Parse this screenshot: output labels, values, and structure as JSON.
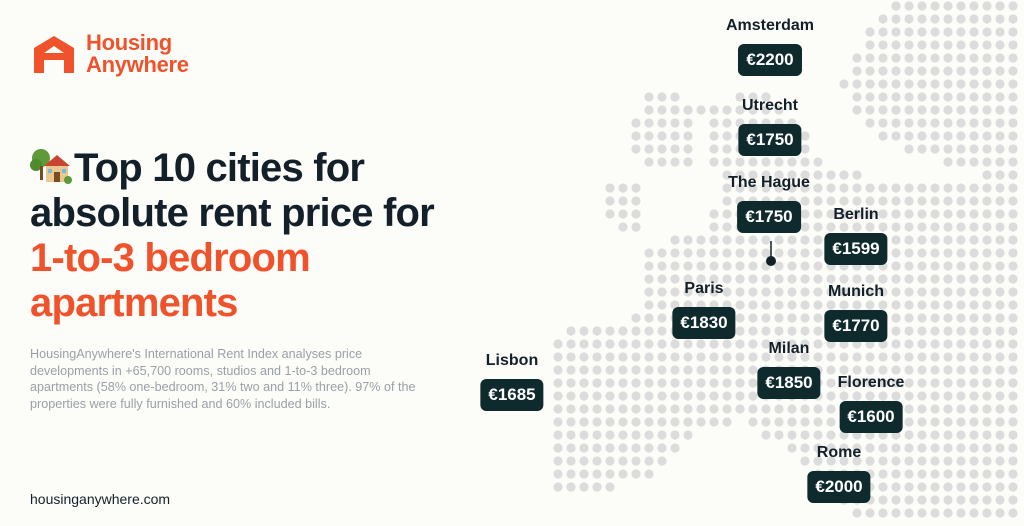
{
  "brand": {
    "name_line1": "Housing",
    "name_line2": "Anywhere",
    "accent_color": "#f0522b"
  },
  "headline": {
    "icon": "house-with-tree-icon",
    "line1": "Top 10 cities for",
    "line2": "absolute rent price for",
    "line3": "1-to-3 bedroom",
    "line4": "apartments"
  },
  "description": "HousingAnywhere's International Rent Index analyses price developments in +65,700 rooms, studios and 1-to-3 bedroom apartments (58% one-bedroom, 31% two and 11% three). 97% of the properties were fully furnished and 60% included bills.",
  "website": "housinganywhere.com",
  "cities": [
    {
      "name": "Amsterdam",
      "price": "€2200"
    },
    {
      "name": "Utrecht",
      "price": "€1750"
    },
    {
      "name": "The Hague",
      "price": "€1750"
    },
    {
      "name": "Berlin",
      "price": "€1599"
    },
    {
      "name": "Paris",
      "price": "€1830"
    },
    {
      "name": "Munich",
      "price": "€1770"
    },
    {
      "name": "Lisbon",
      "price": "€1685"
    },
    {
      "name": "Milan",
      "price": "€1850"
    },
    {
      "name": "Florence",
      "price": "€1600"
    },
    {
      "name": "Rome",
      "price": "€2000"
    }
  ],
  "colors": {
    "badge": "#0f2a2d",
    "dots": "#dcdcdc",
    "text": "#13202a",
    "muted": "#9aa0a6"
  }
}
